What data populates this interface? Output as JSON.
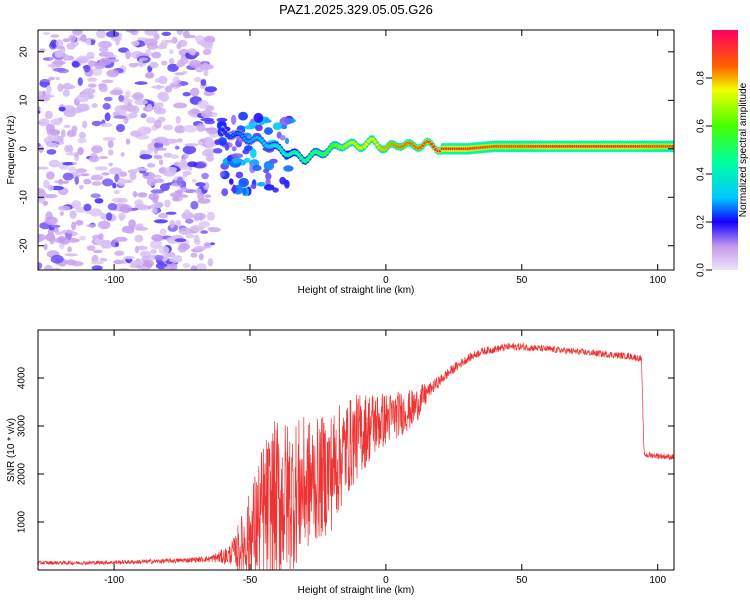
{
  "title": "PAZ1.2025.329.05.05.G26",
  "chart_data": [
    {
      "type": "heatmap",
      "xlabel": "Height of straight line (km)",
      "ylabel": "Frequency (Hz)",
      "xlim": [
        -128,
        106
      ],
      "ylim": [
        -25,
        24.5
      ],
      "xticks": [
        -100,
        -50,
        0,
        50,
        100
      ],
      "xtick_labels": [
        "-100",
        "-50",
        "0",
        "50",
        "100"
      ],
      "yticks": [
        -20,
        -10,
        0,
        10,
        20
      ],
      "ytick_labels": [
        "-20",
        "-10",
        "0",
        "10",
        "20"
      ],
      "colorbar": {
        "label": "Normalized spectral amplitude",
        "range": [
          0,
          1
        ],
        "ticks": [
          0,
          0.2,
          0.4,
          0.6,
          0.8
        ],
        "tick_labels": [
          "0.0",
          "0.2",
          "0.4",
          "0.6",
          "0.8"
        ]
      },
      "ridge": {
        "x": [
          -62,
          -57,
          -50,
          -45,
          -40,
          -35,
          -30,
          -25,
          -20,
          -15,
          -10,
          -5,
          0,
          5,
          10,
          15,
          20,
          30,
          40,
          50,
          60,
          70,
          80,
          90,
          100,
          106
        ],
        "y": [
          4,
          3,
          2,
          1.5,
          0,
          -1,
          -2,
          -1,
          0,
          1,
          0.5,
          1.5,
          0,
          1,
          0.5,
          1,
          0,
          0,
          0.5,
          0.5,
          0.5,
          0.5,
          0.5,
          0.5,
          0.5,
          0.5
        ],
        "amplitude": [
          0.2,
          0.25,
          0.3,
          0.35,
          0.4,
          0.45,
          0.5,
          0.55,
          0.6,
          0.7,
          0.75,
          0.75,
          0.8,
          0.85,
          0.85,
          0.9,
          0.95,
          0.95,
          0.9,
          0.9,
          0.95,
          0.95,
          0.95,
          0.95,
          0.9,
          0.9
        ]
      }
    },
    {
      "type": "line",
      "xlabel": "Height of straight line (km)",
      "ylabel": "SNR (10 * v/v)",
      "xlim": [
        -128,
        106
      ],
      "ylim": [
        0,
        5000
      ],
      "xticks": [
        -100,
        -50,
        0,
        50,
        100
      ],
      "xtick_labels": [
        "-100",
        "-50",
        "0",
        "50",
        "100"
      ],
      "yticks": [
        1000,
        2000,
        3000,
        4000
      ],
      "ytick_labels": [
        "1000",
        "2000",
        "3000",
        "4000"
      ],
      "color": "#ee3333",
      "series": [
        {
          "name": "SNR",
          "x": [
            -128,
            -110,
            -90,
            -75,
            -65,
            -58,
            -54,
            -50,
            -45,
            -40,
            -35,
            -30,
            -25,
            -20,
            -15,
            -10,
            -5,
            0,
            5,
            10,
            15,
            20,
            25,
            30,
            35,
            40,
            45,
            50,
            60,
            70,
            80,
            90,
            94,
            95,
            100,
            106
          ],
          "y": [
            150,
            150,
            170,
            200,
            230,
            300,
            500,
            800,
            1300,
            1600,
            1700,
            1900,
            2000,
            2200,
            2600,
            2900,
            3100,
            3200,
            3300,
            3400,
            3700,
            3950,
            4200,
            4400,
            4550,
            4600,
            4650,
            4650,
            4600,
            4550,
            4500,
            4450,
            4400,
            2400,
            2380,
            2350
          ],
          "noise": [
            40,
            40,
            45,
            50,
            60,
            200,
            350,
            600,
            1000,
            1100,
            1000,
            900,
            800,
            800,
            650,
            550,
            450,
            350,
            300,
            250,
            150,
            120,
            100,
            90,
            80,
            80,
            80,
            80,
            70,
            70,
            70,
            70,
            70,
            60,
            60,
            60
          ]
        }
      ]
    }
  ]
}
